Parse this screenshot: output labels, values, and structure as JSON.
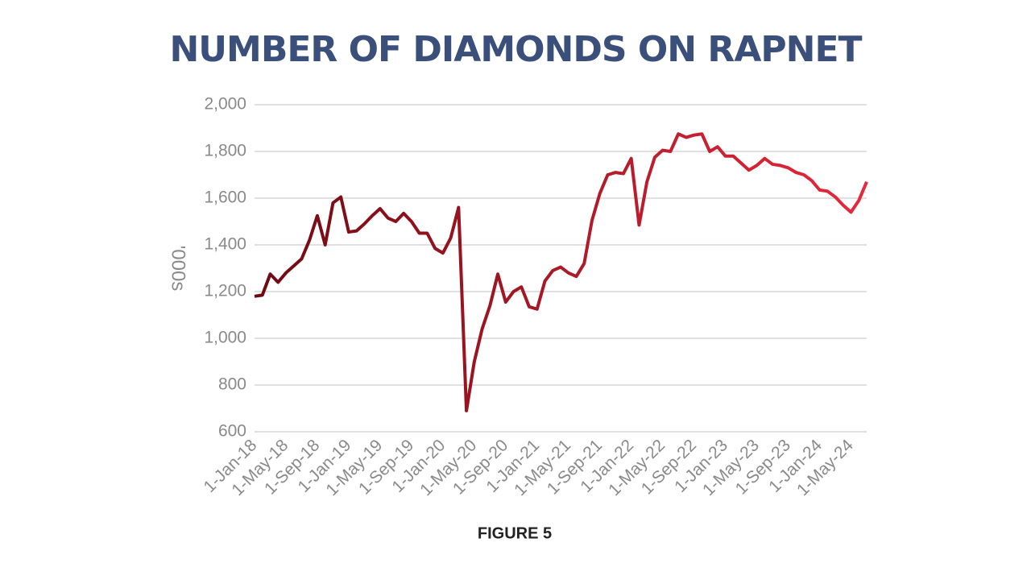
{
  "chart_data": {
    "type": "line",
    "title": "NUMBER OF DIAMONDS ON RAPNET",
    "y_label": "'000s",
    "caption": "FIGURE 5",
    "categories": [
      "1-Jan-18",
      null,
      null,
      null,
      "1-May-18",
      null,
      null,
      null,
      "1-Sep-18",
      null,
      null,
      null,
      "1-Jan-19",
      null,
      null,
      null,
      "1-May-19",
      null,
      null,
      null,
      "1-Sep-19",
      null,
      null,
      null,
      "1-Jan-20",
      null,
      null,
      null,
      "1-May-20",
      null,
      null,
      null,
      "1-Sep-20",
      null,
      null,
      null,
      "1-Jan-21",
      null,
      null,
      null,
      "1-May-21",
      null,
      null,
      null,
      "1-Sep-21",
      null,
      null,
      null,
      "1-Jan-22",
      null,
      null,
      null,
      "1-May-22",
      null,
      null,
      null,
      "1-Sep-22",
      null,
      null,
      null,
      "1-Jan-23",
      null,
      null,
      null,
      "1-May-23",
      null,
      null,
      null,
      "1-Sep-23",
      null,
      null,
      null,
      "1-Jan-24",
      null,
      null,
      null,
      "1-May-24",
      null,
      null
    ],
    "series": [
      {
        "name": "Diamonds",
        "color_start": "#6e0a12",
        "color_end": "#e8283c",
        "values": [
          1180,
          1185,
          1275,
          1240,
          1280,
          1310,
          1340,
          1420,
          1525,
          1400,
          1580,
          1605,
          1455,
          1460,
          1490,
          1525,
          1555,
          1515,
          1500,
          1535,
          1500,
          1450,
          1450,
          1385,
          1365,
          1430,
          1560,
          690,
          900,
          1040,
          1140,
          1275,
          1155,
          1200,
          1220,
          1135,
          1125,
          1245,
          1290,
          1305,
          1280,
          1265,
          1320,
          1505,
          1620,
          1700,
          1710,
          1705,
          1770,
          1485,
          1670,
          1775,
          1805,
          1800,
          1875,
          1860,
          1870,
          1875,
          1800,
          1820,
          1780,
          1780,
          1750,
          1720,
          1740,
          1770,
          1745,
          1740,
          1730,
          1710,
          1700,
          1675,
          1635,
          1630,
          1605,
          1570,
          1540,
          1590,
          1670
        ]
      }
    ],
    "ylim": [
      600,
      2000
    ],
    "yticks": [
      {
        "value": 600,
        "label": "600"
      },
      {
        "value": 800,
        "label": "800"
      },
      {
        "value": 1000,
        "label": "1,000"
      },
      {
        "value": 1200,
        "label": "1,200"
      },
      {
        "value": 1400,
        "label": "1,400"
      },
      {
        "value": 1600,
        "label": "1,600"
      },
      {
        "value": 1800,
        "label": "1,800"
      },
      {
        "value": 2000,
        "label": "2,000"
      }
    ],
    "grid": true
  }
}
